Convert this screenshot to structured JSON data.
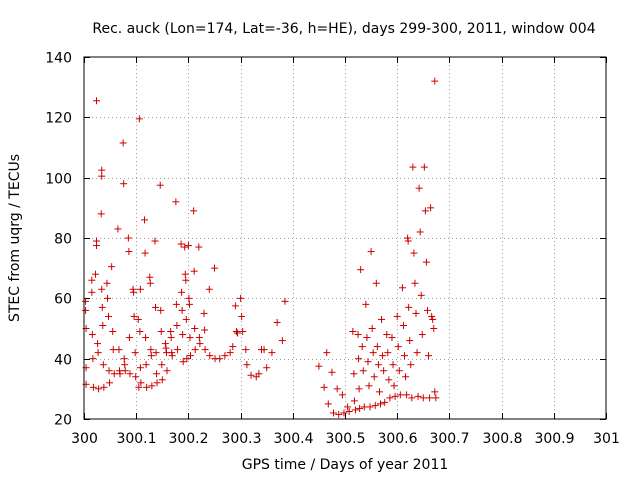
{
  "chart_data": {
    "type": "scatter",
    "title": "Rec. auck (Lon=174, Lat=-36, h=HE), days 299-300, 2011, window 004",
    "xlabel": "GPS time / Days of year 2011",
    "ylabel": "STEC from uqrg / TECUs",
    "xlim": [
      300,
      301
    ],
    "ylim": [
      20,
      140
    ],
    "x_ticks": [
      300,
      300.1,
      300.2,
      300.3,
      300.4,
      300.5,
      300.6,
      300.7,
      300.8,
      300.9,
      301
    ],
    "x_tick_labels": [
      "300",
      "300.1",
      "300.2",
      "300.3",
      "300.4",
      "300.5",
      "300.6",
      "300.7",
      "300.8",
      "300.9",
      "301"
    ],
    "y_ticks": [
      20,
      40,
      60,
      80,
      100,
      120,
      140
    ],
    "y_tick_labels": [
      "20",
      "40",
      "60",
      "80",
      "100",
      "120",
      "140"
    ],
    "grid": true,
    "marker": "+",
    "marker_color": "#cc0000",
    "series": [
      {
        "name": "STEC",
        "points": [
          [
            300.003,
            59
          ],
          [
            300.003,
            56
          ],
          [
            300.004,
            50
          ],
          [
            300.004,
            37
          ],
          [
            300.004,
            31.5
          ],
          [
            300.015,
            66
          ],
          [
            300.015,
            62
          ],
          [
            300.016,
            48
          ],
          [
            300.017,
            40
          ],
          [
            300.018,
            30.5
          ],
          [
            300.022,
            68
          ],
          [
            300.024,
            77.5
          ],
          [
            300.024,
            79
          ],
          [
            300.026,
            45
          ],
          [
            300.027,
            42
          ],
          [
            300.028,
            30
          ],
          [
            300.024,
            125.5
          ],
          [
            300.033,
            88
          ],
          [
            300.034,
            100.5
          ],
          [
            300.034,
            102.5
          ],
          [
            300.034,
            63
          ],
          [
            300.035,
            57
          ],
          [
            300.036,
            51
          ],
          [
            300.037,
            38
          ],
          [
            300.038,
            30.5
          ],
          [
            300.044,
            65
          ],
          [
            300.045,
            60
          ],
          [
            300.047,
            54
          ],
          [
            300.048,
            36
          ],
          [
            300.049,
            32
          ],
          [
            300.053,
            70.5
          ],
          [
            300.055,
            49
          ],
          [
            300.056,
            43
          ],
          [
            300.058,
            35
          ],
          [
            300.065,
            83
          ],
          [
            300.067,
            43
          ],
          [
            300.068,
            36
          ],
          [
            300.069,
            35
          ],
          [
            300.075,
            111.5
          ],
          [
            300.076,
            98
          ],
          [
            300.077,
            40
          ],
          [
            300.078,
            38
          ],
          [
            300.079,
            36
          ],
          [
            300.085,
            80
          ],
          [
            300.086,
            75.5
          ],
          [
            300.087,
            47
          ],
          [
            300.088,
            35
          ],
          [
            300.094,
            63
          ],
          [
            300.095,
            62
          ],
          [
            300.096,
            54
          ],
          [
            300.098,
            42
          ],
          [
            300.099,
            34
          ],
          [
            300.104,
            53
          ],
          [
            300.105,
            30.5
          ],
          [
            300.107,
            49
          ],
          [
            300.108,
            37
          ],
          [
            300.109,
            32
          ],
          [
            300.106,
            119.5
          ],
          [
            300.108,
            63
          ],
          [
            300.116,
            86
          ],
          [
            300.117,
            75
          ],
          [
            300.118,
            47
          ],
          [
            300.119,
            38
          ],
          [
            300.12,
            30.5
          ],
          [
            300.126,
            67
          ],
          [
            300.127,
            65
          ],
          [
            300.128,
            43
          ],
          [
            300.129,
            41
          ],
          [
            300.13,
            31
          ],
          [
            300.136,
            79
          ],
          [
            300.137,
            57
          ],
          [
            300.138,
            42
          ],
          [
            300.139,
            35
          ],
          [
            300.14,
            32
          ],
          [
            300.146,
            97.5
          ],
          [
            300.147,
            56
          ],
          [
            300.148,
            49
          ],
          [
            300.149,
            38
          ],
          [
            300.15,
            33
          ],
          [
            300.156,
            45
          ],
          [
            300.157,
            43.5
          ],
          [
            300.158,
            42
          ],
          [
            300.159,
            36
          ],
          [
            300.166,
            49
          ],
          [
            300.167,
            47
          ],
          [
            300.168,
            42
          ],
          [
            300.169,
            41
          ],
          [
            300.176,
            92
          ],
          [
            300.177,
            58
          ],
          [
            300.178,
            51
          ],
          [
            300.179,
            43
          ],
          [
            300.186,
            78
          ],
          [
            300.187,
            62
          ],
          [
            300.188,
            56
          ],
          [
            300.189,
            48
          ],
          [
            300.19,
            39
          ],
          [
            300.193,
            77
          ],
          [
            300.194,
            68
          ],
          [
            300.195,
            66
          ],
          [
            300.196,
            53
          ],
          [
            300.197,
            40
          ],
          [
            300.2,
            77.5
          ],
          [
            300.201,
            60
          ],
          [
            300.202,
            58
          ],
          [
            300.203,
            47
          ],
          [
            300.204,
            41
          ],
          [
            300.21,
            89
          ],
          [
            300.211,
            69
          ],
          [
            300.212,
            50
          ],
          [
            300.213,
            43
          ],
          [
            300.22,
            77
          ],
          [
            300.221,
            47
          ],
          [
            300.222,
            45
          ],
          [
            300.23,
            55
          ],
          [
            300.231,
            49.5
          ],
          [
            300.232,
            43
          ],
          [
            300.24,
            63
          ],
          [
            300.241,
            41
          ],
          [
            300.25,
            70
          ],
          [
            300.251,
            40
          ],
          [
            300.26,
            40
          ],
          [
            300.27,
            41
          ],
          [
            300.28,
            42
          ],
          [
            300.285,
            44
          ],
          [
            300.29,
            57.5
          ],
          [
            300.292,
            49
          ],
          [
            300.294,
            48.5
          ],
          [
            300.3,
            60
          ],
          [
            300.302,
            54
          ],
          [
            300.304,
            49
          ],
          [
            300.31,
            43
          ],
          [
            300.312,
            38
          ],
          [
            300.32,
            34.5
          ],
          [
            300.33,
            34
          ],
          [
            300.335,
            35
          ],
          [
            300.34,
            43
          ],
          [
            300.345,
            43
          ],
          [
            300.35,
            37
          ],
          [
            300.36,
            42
          ],
          [
            300.37,
            52
          ],
          [
            300.38,
            46
          ],
          [
            300.385,
            59
          ],
          [
            300.45,
            37.5
          ],
          [
            300.46,
            30.5
          ],
          [
            300.465,
            42
          ],
          [
            300.468,
            25
          ],
          [
            300.475,
            35.5
          ],
          [
            300.478,
            22
          ],
          [
            300.485,
            30
          ],
          [
            300.488,
            21.5
          ],
          [
            300.495,
            28
          ],
          [
            300.498,
            22
          ],
          [
            300.505,
            24
          ],
          [
            300.508,
            22.5
          ],
          [
            300.515,
            49
          ],
          [
            300.517,
            35
          ],
          [
            300.518,
            26
          ],
          [
            300.52,
            23
          ],
          [
            300.525,
            48
          ],
          [
            300.526,
            40
          ],
          [
            300.527,
            30
          ],
          [
            300.528,
            23.5
          ],
          [
            300.53,
            69.5
          ],
          [
            300.533,
            44
          ],
          [
            300.535,
            36
          ],
          [
            300.537,
            24
          ],
          [
            300.54,
            58
          ],
          [
            300.542,
            47
          ],
          [
            300.544,
            39
          ],
          [
            300.546,
            31
          ],
          [
            300.548,
            24
          ],
          [
            300.55,
            75.5
          ],
          [
            300.552,
            50
          ],
          [
            300.554,
            42
          ],
          [
            300.556,
            34
          ],
          [
            300.558,
            24.5
          ],
          [
            300.56,
            65
          ],
          [
            300.562,
            44
          ],
          [
            300.564,
            38
          ],
          [
            300.566,
            29
          ],
          [
            300.568,
            25
          ],
          [
            300.57,
            53
          ],
          [
            300.572,
            41
          ],
          [
            300.574,
            36
          ],
          [
            300.576,
            25.5
          ],
          [
            300.58,
            48
          ],
          [
            300.582,
            42
          ],
          [
            300.584,
            33
          ],
          [
            300.586,
            27
          ],
          [
            300.59,
            47
          ],
          [
            300.592,
            38
          ],
          [
            300.594,
            31
          ],
          [
            300.596,
            27.5
          ],
          [
            300.6,
            54
          ],
          [
            300.602,
            44
          ],
          [
            300.604,
            36
          ],
          [
            300.606,
            28
          ],
          [
            300.61,
            63.5
          ],
          [
            300.612,
            51
          ],
          [
            300.614,
            41
          ],
          [
            300.616,
            34
          ],
          [
            300.618,
            28
          ],
          [
            300.62,
            80
          ],
          [
            300.621,
            79
          ],
          [
            300.622,
            57
          ],
          [
            300.624,
            46
          ],
          [
            300.626,
            38
          ],
          [
            300.628,
            27
          ],
          [
            300.63,
            103.5
          ],
          [
            300.632,
            75
          ],
          [
            300.634,
            65
          ],
          [
            300.636,
            55
          ],
          [
            300.638,
            42
          ],
          [
            300.64,
            27.5
          ],
          [
            300.642,
            96.5
          ],
          [
            300.644,
            82
          ],
          [
            300.646,
            61
          ],
          [
            300.648,
            48
          ],
          [
            300.65,
            27
          ],
          [
            300.652,
            103.5
          ],
          [
            300.654,
            89
          ],
          [
            300.656,
            72
          ],
          [
            300.658,
            56
          ],
          [
            300.66,
            41
          ],
          [
            300.662,
            27
          ],
          [
            300.664,
            90
          ],
          [
            300.666,
            54
          ],
          [
            300.668,
            53
          ],
          [
            300.67,
            50
          ],
          [
            300.672,
            29
          ],
          [
            300.674,
            27
          ],
          [
            300.672,
            132
          ]
        ]
      }
    ]
  }
}
